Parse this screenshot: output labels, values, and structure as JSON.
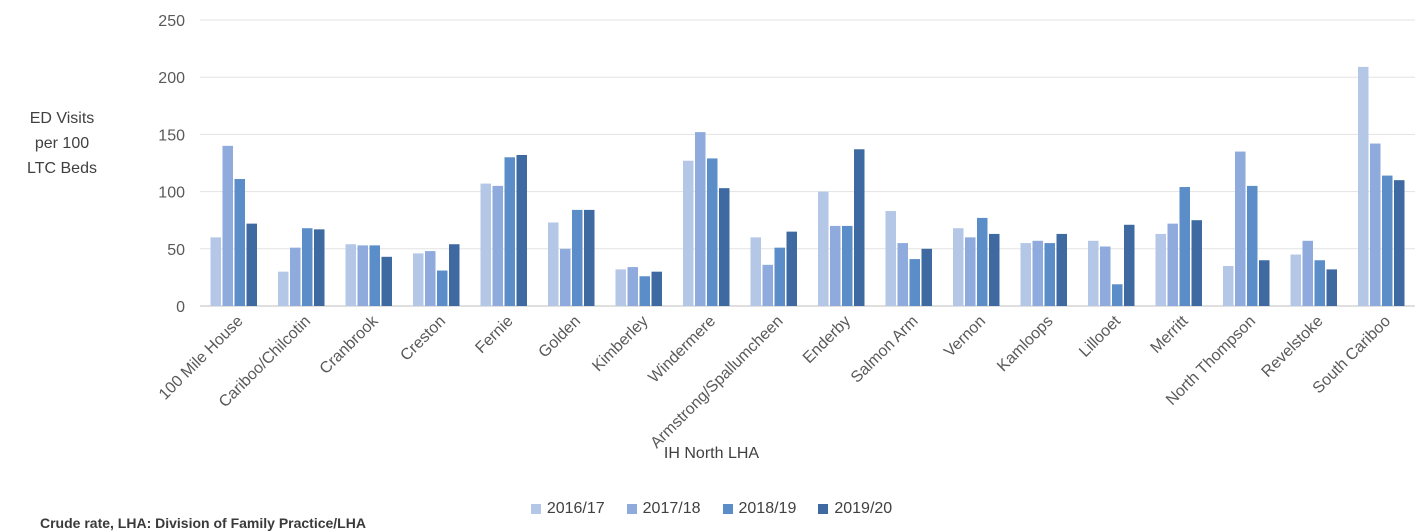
{
  "chart_data": {
    "type": "bar",
    "title": "",
    "ylabel_lines": [
      "ED Visits",
      "per 100",
      "LTC Beds"
    ],
    "xlabel": "IH North LHA",
    "ylim": [
      0,
      250
    ],
    "yticks": [
      0,
      50,
      100,
      150,
      200,
      250
    ],
    "grid": true,
    "legend_position": "bottom",
    "categories": [
      "100 Mile House",
      "Cariboo/Chilcotin",
      "Cranbrook",
      "Creston",
      "Fernie",
      "Golden",
      "Kimberley",
      "Windermere",
      "Armstrong/Spallumcheen",
      "Enderby",
      "Salmon Arm",
      "Vernon",
      "Kamloops",
      "Lillooet",
      "Merritt",
      "North Thompson",
      "Revelstoke",
      "South Cariboo"
    ],
    "series": [
      {
        "name": "2016/17",
        "color": "#b4c7e7",
        "values": [
          60,
          30,
          54,
          46,
          107,
          73,
          32,
          127,
          60,
          100,
          83,
          68,
          55,
          57,
          63,
          35,
          45,
          209
        ]
      },
      {
        "name": "2017/18",
        "color": "#8faadc",
        "values": [
          140,
          51,
          53,
          48,
          105,
          50,
          34,
          152,
          36,
          70,
          55,
          60,
          57,
          52,
          72,
          135,
          57,
          142
        ]
      },
      {
        "name": "2018/19",
        "color": "#5b8ec9",
        "values": [
          111,
          68,
          53,
          31,
          130,
          84,
          26,
          129,
          51,
          70,
          41,
          77,
          55,
          19,
          104,
          105,
          40,
          114
        ]
      },
      {
        "name": "2019/20",
        "color": "#3e6aa1",
        "values": [
          72,
          67,
          43,
          54,
          132,
          84,
          30,
          103,
          65,
          137,
          50,
          63,
          63,
          71,
          75,
          40,
          32,
          110
        ]
      }
    ]
  },
  "footnote": "Crude rate, LHA: Division of Family Practice/LHA"
}
